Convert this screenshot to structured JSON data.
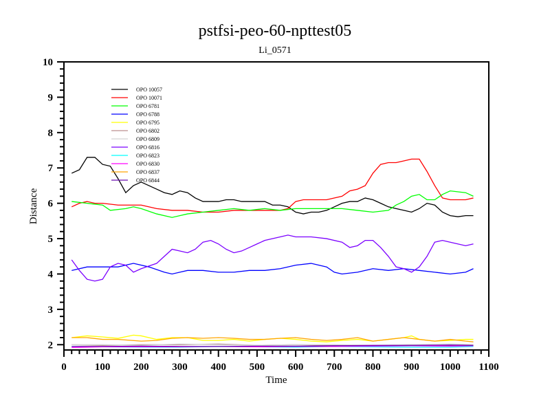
{
  "chart_data": {
    "type": "line",
    "title": "pstfsi-peo-60-npttest05",
    "subtitle": "Li_0571",
    "xlabel": "Time",
    "ylabel": "Distance",
    "xlim": [
      0,
      1100
    ],
    "ylim": [
      1.85,
      10
    ],
    "xticks": [
      0,
      100,
      200,
      300,
      400,
      500,
      600,
      700,
      800,
      900,
      1000,
      1100
    ],
    "yticks": [
      2,
      3,
      4,
      5,
      6,
      7,
      8,
      9,
      10
    ],
    "legend_position": "top-left",
    "series": [
      {
        "name": "OPO 10057",
        "color": "#000000",
        "x": [
          20,
          40,
          60,
          80,
          100,
          120,
          140,
          160,
          180,
          200,
          220,
          240,
          260,
          280,
          300,
          320,
          340,
          360,
          380,
          400,
          420,
          440,
          460,
          480,
          500,
          520,
          540,
          560,
          580,
          600,
          620,
          640,
          660,
          680,
          700,
          720,
          740,
          760,
          780,
          800,
          820,
          840,
          860,
          880,
          900,
          920,
          940,
          960,
          980,
          1000,
          1020,
          1040,
          1060
        ],
        "y": [
          6.85,
          6.95,
          7.3,
          7.3,
          7.1,
          7.05,
          6.7,
          6.3,
          6.5,
          6.6,
          6.5,
          6.4,
          6.3,
          6.25,
          6.35,
          6.3,
          6.15,
          6.05,
          6.05,
          6.05,
          6.1,
          6.1,
          6.05,
          6.05,
          6.05,
          6.05,
          5.95,
          5.95,
          5.9,
          5.75,
          5.7,
          5.75,
          5.75,
          5.8,
          5.9,
          6.0,
          6.05,
          6.05,
          6.15,
          6.1,
          6.0,
          5.9,
          5.85,
          5.8,
          5.75,
          5.85,
          6.0,
          5.95,
          5.75,
          5.65,
          5.62,
          5.65,
          5.65
        ]
      },
      {
        "name": "OPO 10071",
        "color": "#ff0000",
        "x": [
          20,
          40,
          60,
          80,
          100,
          140,
          200,
          240,
          280,
          320,
          360,
          400,
          440,
          480,
          520,
          560,
          580,
          600,
          620,
          680,
          720,
          740,
          760,
          780,
          800,
          820,
          840,
          860,
          880,
          900,
          920,
          940,
          960,
          980,
          1000,
          1040,
          1060
        ],
        "y": [
          5.9,
          6.0,
          6.05,
          6.0,
          6.0,
          5.95,
          5.95,
          5.85,
          5.8,
          5.8,
          5.75,
          5.75,
          5.8,
          5.8,
          5.8,
          5.8,
          5.85,
          6.05,
          6.1,
          6.1,
          6.2,
          6.35,
          6.4,
          6.5,
          6.85,
          7.1,
          7.15,
          7.15,
          7.2,
          7.25,
          7.25,
          6.9,
          6.5,
          6.15,
          6.1,
          6.1,
          6.15
        ]
      },
      {
        "name": "OPO 6781",
        "color": "#00ff00",
        "x": [
          20,
          60,
          100,
          120,
          160,
          180,
          200,
          240,
          280,
          300,
          320,
          360,
          400,
          440,
          480,
          520,
          560,
          600,
          640,
          680,
          720,
          760,
          800,
          840,
          860,
          880,
          900,
          920,
          940,
          960,
          980,
          1000,
          1040,
          1060
        ],
        "y": [
          6.05,
          6.0,
          5.95,
          5.8,
          5.85,
          5.9,
          5.85,
          5.7,
          5.6,
          5.65,
          5.7,
          5.75,
          5.8,
          5.85,
          5.8,
          5.85,
          5.8,
          5.85,
          5.85,
          5.85,
          5.85,
          5.8,
          5.75,
          5.8,
          5.95,
          6.05,
          6.2,
          6.25,
          6.1,
          6.1,
          6.25,
          6.35,
          6.3,
          6.2
        ]
      },
      {
        "name": "OPO 6788",
        "color": "#0000ff",
        "x": [
          20,
          60,
          100,
          140,
          180,
          220,
          260,
          280,
          300,
          320,
          360,
          400,
          440,
          480,
          520,
          560,
          600,
          640,
          680,
          700,
          720,
          760,
          800,
          840,
          880,
          920,
          960,
          1000,
          1040,
          1060
        ],
        "y": [
          4.1,
          4.2,
          4.2,
          4.2,
          4.3,
          4.2,
          4.05,
          4.0,
          4.05,
          4.1,
          4.1,
          4.05,
          4.05,
          4.1,
          4.1,
          4.15,
          4.25,
          4.3,
          4.2,
          4.05,
          4.0,
          4.05,
          4.15,
          4.1,
          4.15,
          4.1,
          4.05,
          4.0,
          4.05,
          4.15
        ]
      },
      {
        "name": "OPO 6795",
        "color": "#ffff00",
        "x": [
          20,
          60,
          100,
          140,
          180,
          200,
          240,
          280,
          320,
          360,
          400,
          440,
          480,
          520,
          560,
          600,
          640,
          680,
          720,
          760,
          800,
          840,
          880,
          900,
          920,
          960,
          1000,
          1040,
          1060
        ],
        "y": [
          2.2,
          2.25,
          2.22,
          2.18,
          2.27,
          2.25,
          2.15,
          2.2,
          2.2,
          2.12,
          2.12,
          2.15,
          2.1,
          2.15,
          2.18,
          2.15,
          2.1,
          2.08,
          2.12,
          2.15,
          2.1,
          2.15,
          2.2,
          2.25,
          2.15,
          2.1,
          2.12,
          2.15,
          2.15
        ]
      },
      {
        "name": "OPO 6802",
        "color": "#bc8f8f",
        "x": [
          20,
          100,
          200,
          300,
          400,
          500,
          600,
          700,
          800,
          900,
          1000,
          1060
        ],
        "y": [
          2.0,
          1.98,
          2.0,
          2.0,
          2.02,
          1.98,
          2.0,
          1.98,
          1.97,
          2.0,
          1.97,
          1.97
        ]
      },
      {
        "name": "OPO 6809",
        "color": "#d3d3d3",
        "x": [
          20,
          100,
          200,
          300,
          400,
          500,
          600,
          700,
          800,
          900,
          1000,
          1060
        ],
        "y": [
          2.0,
          2.0,
          1.98,
          2.02,
          2.0,
          1.98,
          2.0,
          2.0,
          1.98,
          2.0,
          2.02,
          2.0
        ]
      },
      {
        "name": "OPO 6816",
        "color": "#7b00ff",
        "x": [
          20,
          40,
          60,
          80,
          100,
          120,
          140,
          160,
          180,
          200,
          240,
          260,
          280,
          300,
          320,
          340,
          360,
          380,
          400,
          420,
          440,
          460,
          480,
          500,
          520,
          560,
          580,
          600,
          640,
          680,
          720,
          740,
          760,
          780,
          800,
          820,
          840,
          860,
          880,
          900,
          920,
          940,
          960,
          980,
          1000,
          1040,
          1060
        ],
        "y": [
          4.4,
          4.1,
          3.85,
          3.8,
          3.85,
          4.2,
          4.3,
          4.25,
          4.05,
          4.15,
          4.3,
          4.5,
          4.7,
          4.65,
          4.6,
          4.7,
          4.9,
          4.95,
          4.85,
          4.7,
          4.6,
          4.65,
          4.75,
          4.85,
          4.95,
          5.05,
          5.1,
          5.05,
          5.05,
          5.0,
          4.9,
          4.75,
          4.8,
          4.95,
          4.95,
          4.75,
          4.5,
          4.2,
          4.15,
          4.05,
          4.2,
          4.5,
          4.9,
          4.95,
          4.9,
          4.8,
          4.85
        ]
      },
      {
        "name": "OPO 6823",
        "color": "#00ffff",
        "x": [
          20,
          100,
          200,
          300,
          400,
          500,
          600,
          700,
          800,
          900,
          1000,
          1060
        ],
        "y": [
          1.95,
          1.94,
          1.93,
          1.93,
          1.95,
          1.94,
          1.93,
          1.95,
          1.94,
          1.93,
          1.93,
          1.95
        ]
      },
      {
        "name": "OPO 6830",
        "color": "#ff00ff",
        "x": [
          20,
          100,
          200,
          300,
          400,
          500,
          600,
          700,
          800,
          900,
          1000,
          1060
        ],
        "y": [
          1.92,
          1.94,
          1.94,
          1.94,
          1.95,
          1.94,
          1.95,
          1.95,
          1.96,
          1.97,
          1.96,
          1.97
        ]
      },
      {
        "name": "OPO 6837",
        "color": "#ffa500",
        "x": [
          20,
          60,
          100,
          140,
          200,
          240,
          280,
          320,
          360,
          400,
          440,
          480,
          520,
          560,
          600,
          640,
          680,
          720,
          760,
          800,
          840,
          880,
          920,
          960,
          1000,
          1040,
          1060
        ],
        "y": [
          2.2,
          2.2,
          2.15,
          2.15,
          2.1,
          2.12,
          2.18,
          2.2,
          2.18,
          2.2,
          2.18,
          2.15,
          2.15,
          2.18,
          2.2,
          2.15,
          2.12,
          2.15,
          2.2,
          2.1,
          2.15,
          2.2,
          2.15,
          2.1,
          2.15,
          2.1,
          2.08
        ]
      },
      {
        "name": "OPO 6844",
        "color": "#6a0dad",
        "x": [
          20,
          100,
          200,
          300,
          400,
          500,
          600,
          700,
          800,
          900,
          1000,
          1060
        ],
        "y": [
          1.95,
          1.95,
          1.96,
          1.95,
          1.95,
          1.96,
          1.96,
          1.97,
          1.98,
          1.98,
          1.99,
          1.98
        ]
      }
    ]
  }
}
